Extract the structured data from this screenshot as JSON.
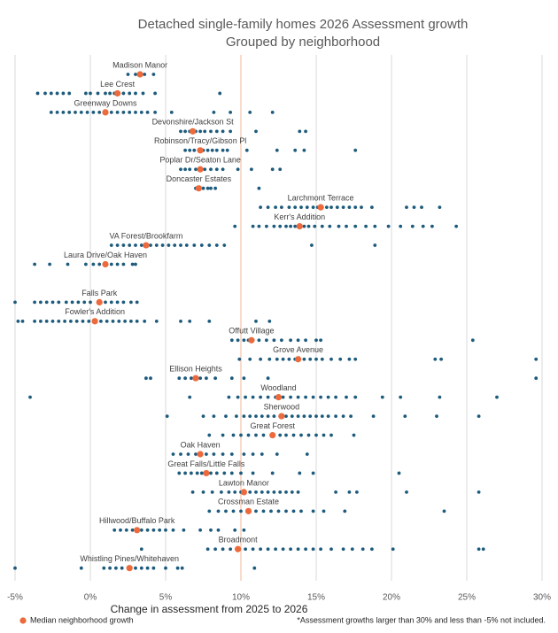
{
  "chart_data": {
    "type": "strip",
    "title": "Detached single-family homes 2026 Assessment growth",
    "subtitle": "Grouped by neighborhood",
    "x_label": "Change in assessment from 2025 to 2026",
    "legend_label": "Median neighborhood growth",
    "note": "*Assessment growths larger than 30% and less than -5% not included.",
    "xlim": [
      -5,
      30
    ],
    "xticks": [
      {
        "value": -5,
        "label": "-5%"
      },
      {
        "value": 0,
        "label": "0%"
      },
      {
        "value": 5,
        "label": "5%"
      },
      {
        "value": 10,
        "label": "10%"
      },
      {
        "value": 15,
        "label": "15%"
      },
      {
        "value": 20,
        "label": "20%"
      },
      {
        "value": 25,
        "label": "25%"
      },
      {
        "value": 30,
        "label": "30%"
      }
    ],
    "grid": true,
    "reference_line": {
      "value": 10,
      "color": "#f2c3a7"
    },
    "dot_color": "#1d5b7c",
    "median_color": "#ec6a3c",
    "groups": [
      {
        "name": "Madison Manor",
        "median": 3.3,
        "values": [
          2.5,
          3.0,
          3.2,
          3.4,
          3.6,
          4.2
        ]
      },
      {
        "name": "Lee Crest",
        "median": 1.8,
        "values": [
          -3.5,
          -3.0,
          -2.6,
          -2.2,
          -1.8,
          -1.4,
          -0.3,
          0.0,
          0.5,
          1.0,
          1.3,
          1.6,
          1.9,
          2.2,
          2.6,
          3.0,
          3.5,
          4.3,
          8.6
        ]
      },
      {
        "name": "Greenway Downs",
        "median": 1.0,
        "values": [
          -2.6,
          -2.2,
          -1.8,
          -1.4,
          -1.0,
          -0.6,
          -0.2,
          0.2,
          0.6,
          1.0,
          1.4,
          1.8,
          2.2,
          2.6,
          3.0,
          3.4,
          3.8,
          4.3,
          5.4,
          8.2,
          9.3,
          10.6,
          12.1
        ]
      },
      {
        "name": "Devonshire/Jackson St",
        "median": 6.8,
        "values": [
          6.0,
          6.3,
          6.6,
          6.8,
          7.0,
          7.3,
          7.6,
          8.0,
          8.4,
          8.8,
          9.3,
          11.0,
          13.9,
          14.3
        ]
      },
      {
        "name": "Robinson/Tracy/Gibson Pl",
        "median": 7.3,
        "values": [
          6.3,
          6.6,
          6.9,
          7.2,
          7.5,
          7.8,
          8.1,
          8.4,
          8.8,
          9.1,
          10.4,
          12.4,
          13.6,
          14.2,
          17.6
        ]
      },
      {
        "name": "Poplar Dr/Seaton Lane",
        "median": 7.3,
        "values": [
          6.0,
          6.3,
          6.6,
          7.0,
          7.3,
          7.6,
          8.0,
          8.4,
          8.8,
          9.8,
          10.7,
          12.1,
          12.6
        ]
      },
      {
        "name": "Doncaster Estates",
        "median": 7.2,
        "values": [
          7.0,
          7.2,
          7.5,
          7.8,
          8.0,
          8.3,
          11.2
        ]
      },
      {
        "name": "Larchmont Terrace",
        "median": 15.3,
        "values": [
          11.3,
          11.8,
          12.3,
          12.7,
          13.2,
          13.6,
          14.0,
          14.4,
          14.8,
          15.1,
          15.4,
          15.7,
          16.0,
          16.4,
          16.8,
          17.2,
          17.6,
          18.0,
          18.7,
          21.0,
          21.5,
          22.0,
          23.2
        ]
      },
      {
        "name": "Kerr's Addition",
        "median": 13.9,
        "values": [
          9.6,
          10.8,
          11.2,
          11.7,
          12.2,
          12.6,
          13.0,
          13.3,
          13.6,
          13.9,
          14.2,
          14.5,
          14.9,
          15.4,
          15.9,
          16.5,
          17.0,
          17.6,
          18.3,
          18.9,
          19.8,
          20.6,
          21.4,
          22.1,
          22.7,
          24.3
        ]
      },
      {
        "name": "VA Forest/Brookfarm",
        "median": 3.7,
        "values": [
          1.4,
          1.8,
          2.2,
          2.6,
          3.0,
          3.4,
          3.7,
          4.0,
          4.4,
          4.8,
          5.2,
          5.6,
          6.0,
          6.4,
          6.9,
          7.4,
          7.9,
          8.4,
          8.9,
          14.7,
          18.9
        ]
      },
      {
        "name": "Laura Drive/Oak Haven",
        "median": 1.0,
        "values": [
          -3.7,
          -2.7,
          -1.5,
          -0.3,
          0.2,
          0.6,
          1.0,
          1.4,
          1.8,
          2.2,
          2.8,
          3.0
        ]
      },
      {
        "name": "Falls Park",
        "median": 0.6,
        "values": [
          -5.0,
          -3.7,
          -3.3,
          -2.9,
          -2.5,
          -2.1,
          -1.6,
          -1.2,
          -0.8,
          -0.4,
          0.0,
          0.6,
          1.0,
          1.4,
          1.8,
          2.2,
          2.7,
          3.1
        ]
      },
      {
        "name": "Fowler's Addition",
        "median": 0.3,
        "values": [
          -4.8,
          -4.5,
          -3.7,
          -3.3,
          -2.9,
          -2.5,
          -2.1,
          -1.7,
          -1.3,
          -0.9,
          -0.5,
          -0.1,
          0.3,
          0.7,
          1.1,
          1.5,
          1.9,
          2.3,
          2.7,
          3.1,
          3.6,
          4.4,
          6.0,
          6.6,
          7.9,
          11.0,
          11.9
        ]
      },
      {
        "name": "Offutt Village",
        "median": 10.7,
        "values": [
          9.4,
          9.8,
          10.2,
          10.5,
          10.8,
          11.2,
          11.7,
          12.2,
          12.7,
          13.3,
          13.8,
          14.3,
          15.0,
          15.3,
          25.4
        ]
      },
      {
        "name": "Grove Avenue",
        "median": 13.8,
        "values": [
          9.9,
          10.6,
          11.3,
          11.9,
          12.4,
          12.8,
          13.2,
          13.6,
          13.9,
          14.2,
          14.6,
          15.0,
          15.4,
          16.0,
          16.6,
          17.2,
          17.6,
          22.9,
          23.3,
          29.6
        ]
      },
      {
        "name": "Ellison Heights",
        "median": 7.0,
        "values": [
          3.7,
          4.0,
          5.9,
          6.3,
          6.7,
          7.0,
          7.3,
          7.7,
          8.3,
          9.4,
          10.2,
          11.8,
          29.6
        ]
      },
      {
        "name": "Woodland",
        "median": 12.5,
        "values": [
          -4.0,
          6.6,
          9.2,
          9.8,
          10.3,
          10.8,
          11.3,
          11.8,
          12.3,
          12.8,
          13.3,
          13.8,
          14.3,
          14.8,
          15.3,
          15.8,
          16.3,
          17.0,
          17.6,
          19.4,
          20.6,
          23.2,
          27.0
        ]
      },
      {
        "name": "Sherwood",
        "median": 12.7,
        "values": [
          5.1,
          7.5,
          8.2,
          9.0,
          9.7,
          10.2,
          10.6,
          11.0,
          11.4,
          11.8,
          12.2,
          12.6,
          13.0,
          13.4,
          13.8,
          14.2,
          14.6,
          15.0,
          15.4,
          15.8,
          16.3,
          16.8,
          17.3,
          18.8,
          20.9,
          23.0,
          25.8
        ]
      },
      {
        "name": "Great Forest",
        "median": 12.1,
        "values": [
          7.9,
          8.8,
          9.5,
          10.0,
          10.5,
          11.0,
          11.5,
          12.1,
          12.6,
          13.0,
          13.5,
          14.0,
          14.5,
          15.0,
          15.5,
          16.0,
          17.5
        ]
      },
      {
        "name": "Oak Haven",
        "median": 7.3,
        "values": [
          5.5,
          6.0,
          6.5,
          7.0,
          7.3,
          7.7,
          8.2,
          8.8,
          9.4,
          10.2,
          10.8,
          11.4,
          12.4,
          14.4
        ]
      },
      {
        "name": "Great Falls/Little Falls",
        "median": 7.7,
        "values": [
          5.9,
          6.3,
          6.7,
          7.1,
          7.4,
          7.7,
          8.0,
          8.4,
          8.9,
          9.4,
          10.0,
          10.8,
          12.1,
          13.9,
          14.8,
          20.5
        ]
      },
      {
        "name": "Lawton Manor",
        "median": 10.2,
        "values": [
          6.8,
          7.5,
          8.1,
          8.7,
          9.2,
          9.6,
          10.0,
          10.2,
          10.6,
          11.0,
          11.4,
          11.8,
          12.2,
          12.6,
          13.0,
          13.4,
          13.8,
          16.3,
          17.2,
          17.7,
          21.0,
          25.8
        ]
      },
      {
        "name": "Crossman Estate",
        "median": 10.5,
        "values": [
          7.9,
          8.5,
          9.0,
          9.5,
          10.0,
          10.5,
          11.0,
          11.5,
          12.0,
          12.5,
          13.0,
          13.5,
          14.0,
          14.8,
          15.5,
          16.9,
          23.5
        ]
      },
      {
        "name": "Hillwood/Buffalo Park",
        "median": 3.1,
        "values": [
          1.6,
          2.0,
          2.4,
          2.8,
          3.1,
          3.4,
          3.8,
          4.2,
          4.6,
          5.0,
          5.5,
          6.2,
          7.3,
          8.0,
          8.5,
          9.6,
          10.2
        ]
      },
      {
        "name": "Broadmont",
        "median": 9.8,
        "values": [
          3.4,
          7.8,
          8.3,
          8.8,
          9.3,
          9.8,
          10.3,
          10.8,
          11.3,
          11.8,
          12.3,
          12.8,
          13.3,
          13.8,
          14.3,
          14.8,
          15.3,
          16.0,
          16.8,
          17.4,
          18.1,
          18.7,
          20.1,
          25.8,
          26.1
        ]
      },
      {
        "name": "Whistling Pines/Whitehaven",
        "median": 2.6,
        "values": [
          -5.0,
          -0.6,
          0.9,
          1.3,
          1.7,
          2.1,
          2.6,
          3.0,
          3.4,
          3.8,
          4.2,
          5.0,
          5.8,
          6.1,
          10.9
        ]
      }
    ]
  }
}
